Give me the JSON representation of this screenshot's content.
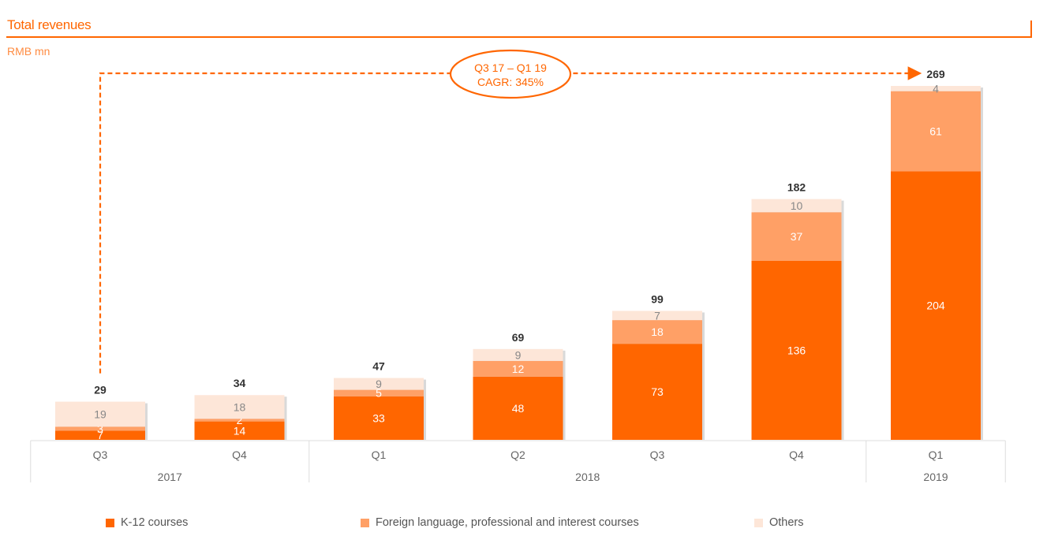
{
  "title": "Total revenues",
  "unit_label": "RMB mn",
  "annotation": {
    "line1": "Q3 17 – Q1 19",
    "line2": "CAGR: 345%"
  },
  "colors": {
    "accent": "#ff6600",
    "k12": "#ff6600",
    "foreign": "#ffa066",
    "others": "#fde6d8",
    "total_text": "#333333",
    "axis_text": "#666666"
  },
  "chart_data": {
    "type": "bar",
    "stacked": true,
    "categories": [
      "Q3",
      "Q4",
      "Q1",
      "Q2",
      "Q3",
      "Q4",
      "Q1"
    ],
    "groups": [
      {
        "label": "2017",
        "count": 2
      },
      {
        "label": "2018",
        "count": 4
      },
      {
        "label": "2019",
        "count": 1
      }
    ],
    "series": [
      {
        "name": "K-12 courses",
        "values": [
          7,
          14,
          33,
          48,
          73,
          136,
          204
        ]
      },
      {
        "name": "Foreign language, professional and interest courses",
        "values": [
          3,
          2,
          5,
          12,
          18,
          37,
          61
        ]
      },
      {
        "name": "Others",
        "values": [
          19,
          18,
          9,
          9,
          7,
          10,
          4
        ]
      }
    ],
    "totals": [
      29,
      34,
      47,
      69,
      99,
      182,
      269
    ],
    "ylim": [
      0,
      269
    ],
    "legend_position": "bottom",
    "grid": false
  }
}
